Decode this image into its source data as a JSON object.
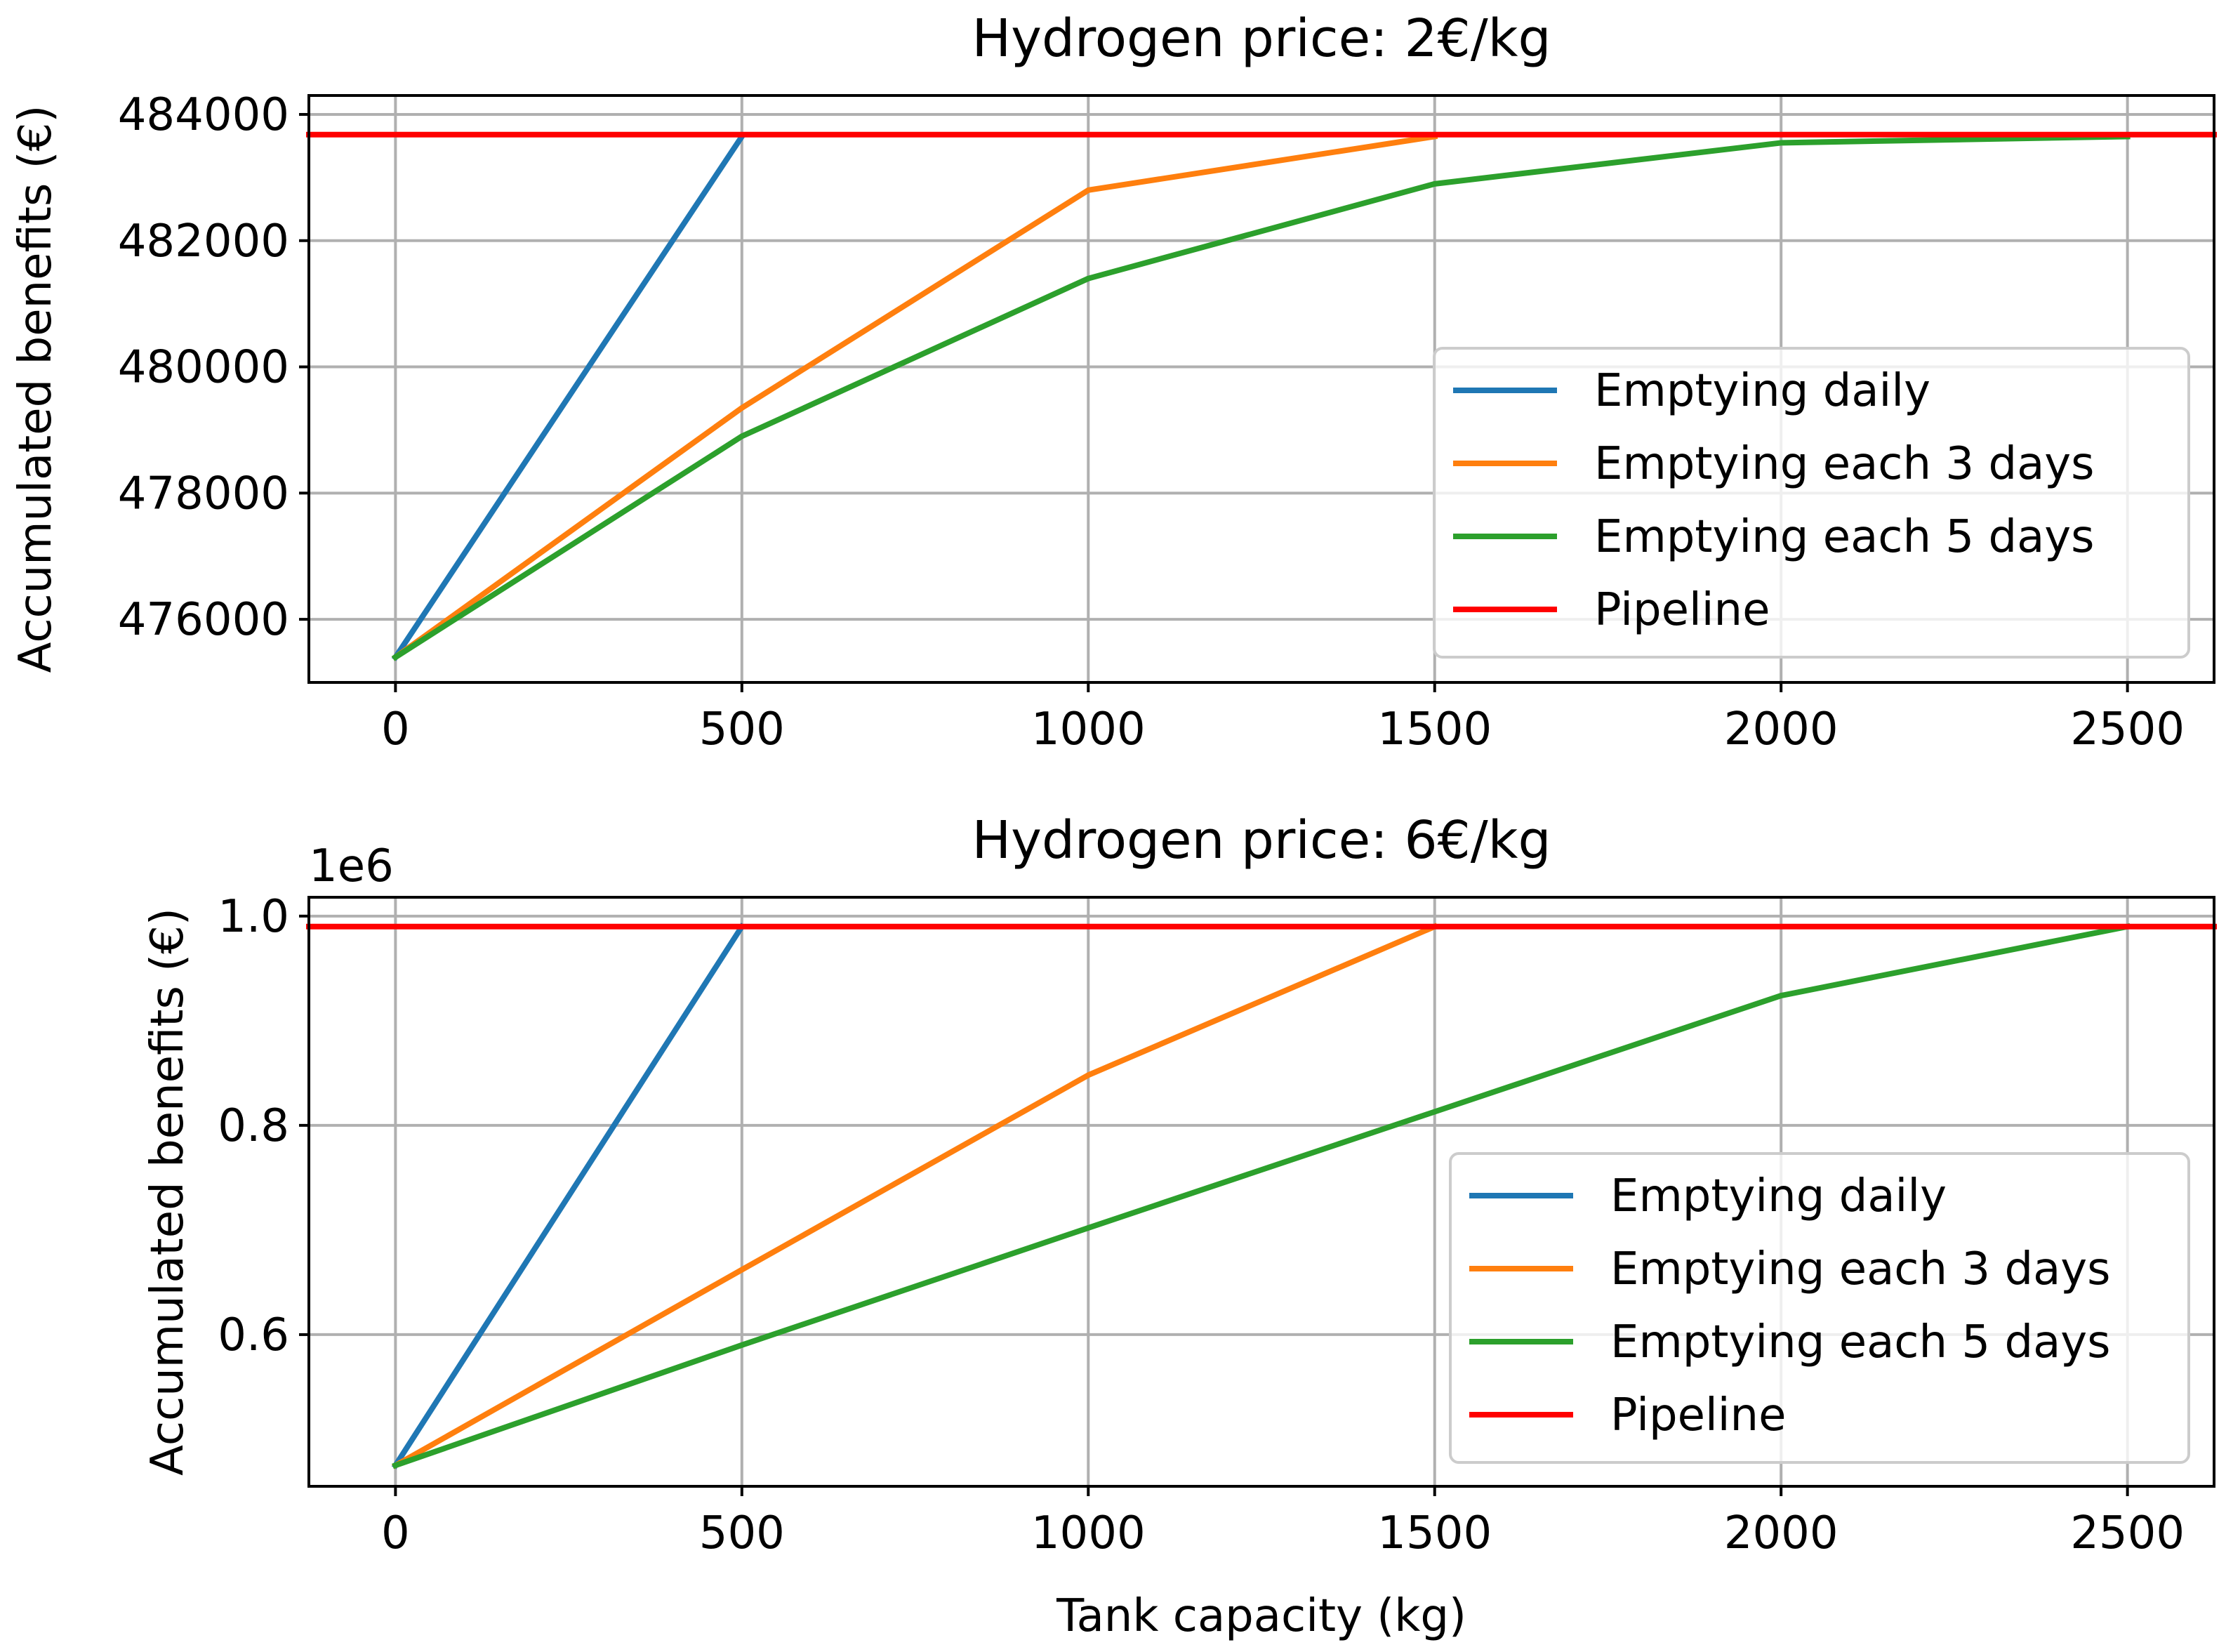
{
  "chart_data": [
    {
      "type": "line",
      "title": "Hydrogen price: 2€/kg",
      "xlabel": "",
      "ylabel": "Accumulated benefits (€)",
      "x": [
        0,
        500,
        1000,
        1500,
        2000,
        2500
      ],
      "xlim": [
        -125,
        2625
      ],
      "ylim": [
        475000,
        484300
      ],
      "xticks": [
        0,
        500,
        1000,
        1500,
        2000,
        2500
      ],
      "xtick_labels": [
        "0",
        "500",
        "1000",
        "1500",
        "2000",
        "2500"
      ],
      "yticks": [
        476000,
        478000,
        480000,
        482000,
        484000
      ],
      "ytick_labels": [
        "476000",
        "478000",
        "480000",
        "482000",
        "484000"
      ],
      "offset_text": "",
      "grid": true,
      "legend_position": "center-right",
      "series": [
        {
          "name": "Emptying daily",
          "color": "#1f77b4",
          "x": [
            0,
            500
          ],
          "values": [
            475400,
            483650
          ]
        },
        {
          "name": "Emptying each 3 days",
          "color": "#ff7f0e",
          "x": [
            0,
            500,
            1000,
            1500
          ],
          "values": [
            475400,
            479350,
            482800,
            483650
          ]
        },
        {
          "name": "Emptying each 5 days",
          "color": "#2ca02c",
          "x": [
            0,
            500,
            1000,
            1500,
            2000,
            2500
          ],
          "values": [
            475400,
            478900,
            481400,
            482900,
            483550,
            483650
          ]
        },
        {
          "name": "Pipeline",
          "color": "#ff0000",
          "x": [
            -125,
            2625
          ],
          "values": [
            483680,
            483680
          ]
        }
      ]
    },
    {
      "type": "line",
      "title": "Hydrogen price: 6€/kg",
      "xlabel": "Tank capacity (kg)",
      "ylabel": "Accumulated benefits (€)",
      "x": [
        0,
        500,
        1000,
        1500,
        2000,
        2500
      ],
      "xlim": [
        -125,
        2625
      ],
      "ylim": [
        0.455,
        1.018
      ],
      "xticks": [
        0,
        500,
        1000,
        1500,
        2000,
        2500
      ],
      "xtick_labels": [
        "0",
        "500",
        "1000",
        "1500",
        "2000",
        "2500"
      ],
      "yticks": [
        0.6,
        0.8,
        1.0
      ],
      "ytick_labels": [
        "0.6",
        "0.8",
        "1.0"
      ],
      "offset_text": "1e6",
      "grid": true,
      "legend_position": "center-right",
      "series": [
        {
          "name": "Emptying daily",
          "color": "#1f77b4",
          "x": [
            0,
            500
          ],
          "values": [
            0.475,
            0.99
          ]
        },
        {
          "name": "Emptying each 3 days",
          "color": "#ff7f0e",
          "x": [
            0,
            500,
            1000,
            1500
          ],
          "values": [
            0.475,
            0.662,
            0.848,
            0.99
          ]
        },
        {
          "name": "Emptying each 5 days",
          "color": "#2ca02c",
          "x": [
            0,
            500,
            1000,
            1500,
            2000,
            2500
          ],
          "values": [
            0.475,
            0.59,
            0.702,
            0.813,
            0.924,
            0.99
          ]
        },
        {
          "name": "Pipeline",
          "color": "#ff0000",
          "x": [
            -125,
            2625
          ],
          "values": [
            0.99,
            0.99
          ]
        }
      ]
    }
  ]
}
